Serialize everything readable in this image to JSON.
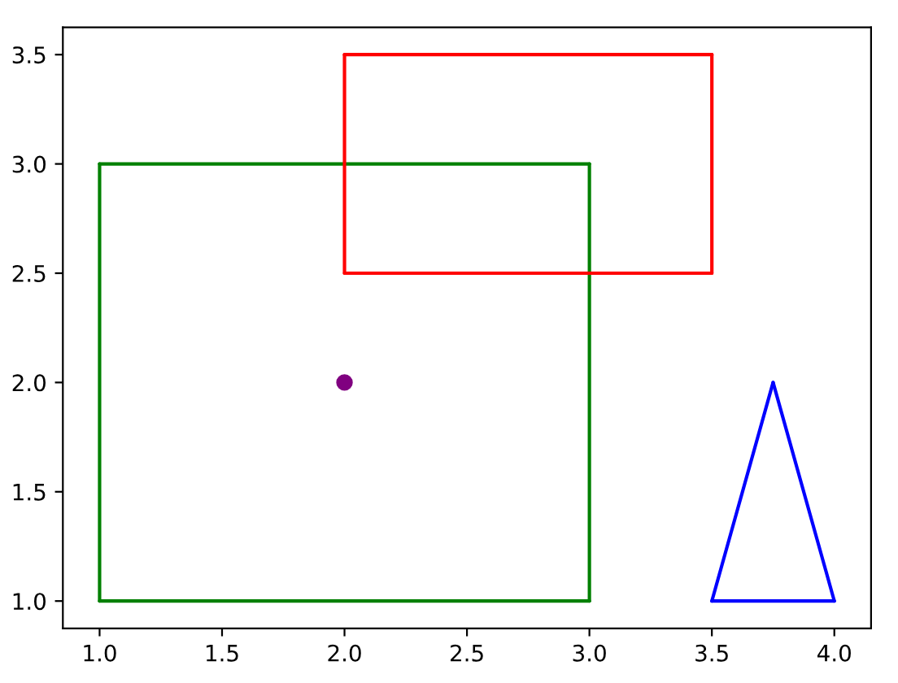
{
  "chart_data": {
    "type": "line",
    "series": [
      {
        "color": "#008000",
        "x": [
          1,
          3
        ],
        "values": [
          1,
          1
        ]
      },
      {
        "color": "#008000",
        "x": [
          3,
          3
        ],
        "values": [
          1,
          3
        ]
      },
      {
        "color": "#008000",
        "x": [
          1,
          3
        ],
        "values": [
          3,
          3
        ]
      },
      {
        "color": "#008000",
        "x": [
          1,
          1
        ],
        "values": [
          1,
          3
        ]
      },
      {
        "color": "#ff0000",
        "x": [
          2,
          3.5
        ],
        "values": [
          2.5,
          2.5
        ]
      },
      {
        "color": "#ff0000",
        "x": [
          3.5,
          3.5
        ],
        "values": [
          2.5,
          3.5
        ]
      },
      {
        "color": "#ff0000",
        "x": [
          2,
          3.5
        ],
        "values": [
          3.5,
          3.5
        ]
      },
      {
        "color": "#ff0000",
        "x": [
          2,
          2
        ],
        "values": [
          2.5,
          3.5
        ]
      },
      {
        "color": "#0000ff",
        "x": [
          3.5,
          4
        ],
        "values": [
          1,
          1
        ]
      },
      {
        "color": "#0000ff",
        "x": [
          3.5,
          3.75
        ],
        "values": [
          1,
          2
        ]
      },
      {
        "color": "#0000ff",
        "x": [
          3.75,
          4
        ],
        "values": [
          2,
          1
        ]
      },
      {
        "type": "scatter",
        "color": "#800080",
        "x": [
          2
        ],
        "values": [
          2
        ],
        "marker": "circle"
      }
    ],
    "xlim": [
      0.85,
      4.15
    ],
    "ylim": [
      0.875,
      3.625
    ],
    "xticks": [
      {
        "value": 1,
        "label": "1.0"
      },
      {
        "value": 1.5,
        "label": "1.5"
      },
      {
        "value": 2,
        "label": "2.0"
      },
      {
        "value": 2.5,
        "label": "2.5"
      },
      {
        "value": 3,
        "label": "3.0"
      },
      {
        "value": 3.5,
        "label": "3.5"
      },
      {
        "value": 4,
        "label": "4.0"
      }
    ],
    "yticks": [
      {
        "value": 1,
        "label": "1.0"
      },
      {
        "value": 1.5,
        "label": "1.5"
      },
      {
        "value": 2,
        "label": "2.0"
      },
      {
        "value": 2.5,
        "label": "2.5"
      },
      {
        "value": 3,
        "label": "3.0"
      },
      {
        "value": 3.5,
        "label": "3.5"
      }
    ],
    "grid": false
  }
}
